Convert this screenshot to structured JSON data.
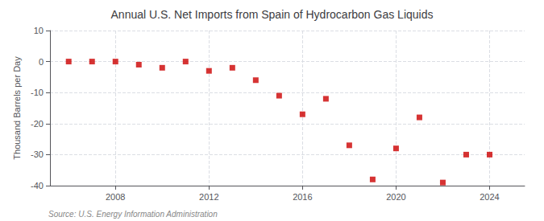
{
  "chart_data": {
    "type": "scatter",
    "title": "Annual U.S. Net Imports from Spain of Hydrocarbon Gas Liquids",
    "ylabel": "Thousand Barrels per Day",
    "annotations": [
      "Source: U.S. Energy Information Administration"
    ],
    "x": [
      2006,
      2007,
      2008,
      2009,
      2010,
      2011,
      2012,
      2013,
      2014,
      2015,
      2016,
      2017,
      2018,
      2019,
      2020,
      2021,
      2022,
      2023,
      2024
    ],
    "values": [
      0,
      0,
      0,
      -1,
      -2,
      0,
      -3,
      -2,
      -6,
      -11,
      -17,
      -12,
      -27,
      -38,
      -28,
      -18,
      -39,
      -30,
      -30
    ],
    "xlim": [
      2005.2,
      2025.5
    ],
    "xticks": [
      2008,
      2012,
      2016,
      2020,
      2024
    ],
    "ylim": [
      -40,
      10
    ],
    "yticks": [
      -40,
      -30,
      -20,
      -10,
      0,
      10
    ],
    "color": "#cc0000",
    "marker": "square",
    "grid": true
  }
}
